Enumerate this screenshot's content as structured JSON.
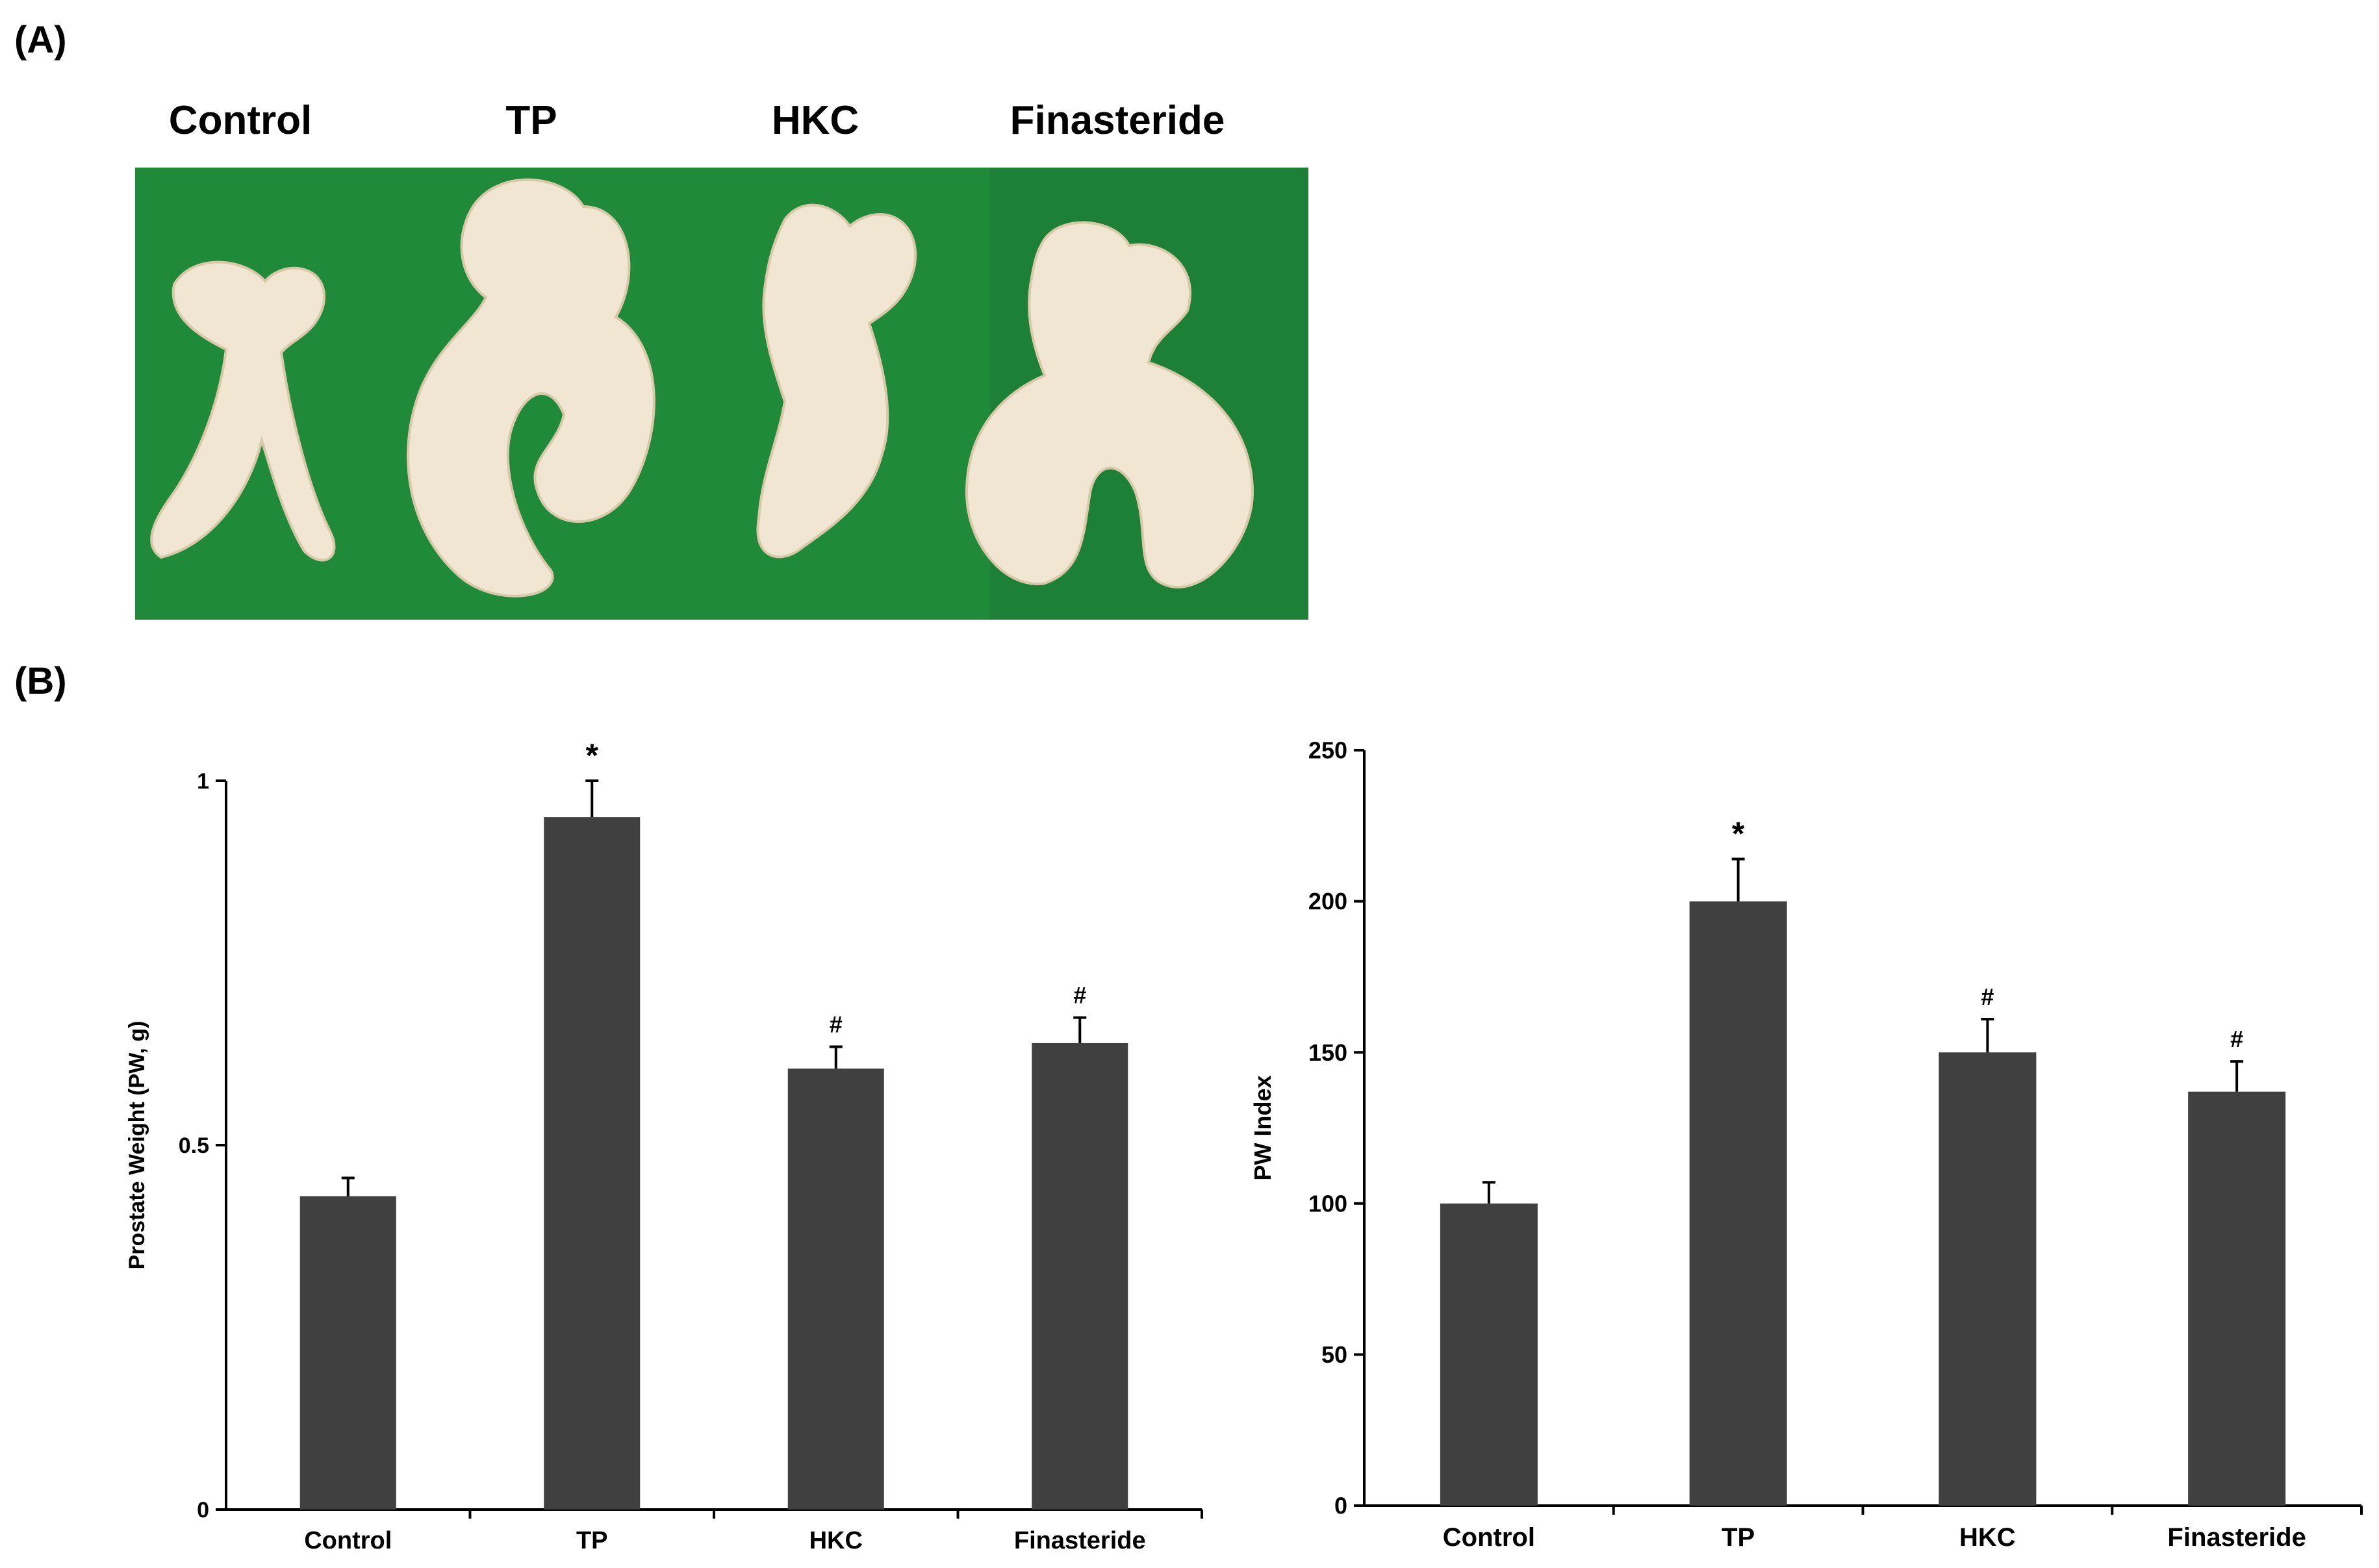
{
  "panels": {
    "a": "(A)",
    "b": "(B)"
  },
  "photo": {
    "labels": [
      "Control",
      "TP",
      "HKC",
      "Finasteride"
    ],
    "background": "#1f8a3a",
    "tissue": "#f0e6d2"
  },
  "colors": {
    "bar": "#404040",
    "axis": "#000000"
  },
  "chart_data": [
    {
      "type": "bar",
      "categories": [
        "Control",
        "TP",
        "HKC",
        "Finasteride"
      ],
      "values": [
        0.43,
        0.95,
        0.605,
        0.64
      ],
      "errors": [
        0.025,
        0.05,
        0.03,
        0.035
      ],
      "annotations": [
        "",
        "*",
        "#",
        "#"
      ],
      "title": "",
      "xlabel": "",
      "ylabel": "Prostate Weight (PW, g)",
      "ylim": [
        0,
        1
      ],
      "yticks": [
        0,
        0.5,
        1
      ],
      "ytick_labels": [
        "0",
        "0.5",
        "1"
      ],
      "grid": false
    },
    {
      "type": "bar",
      "categories": [
        "Control",
        "TP",
        "HKC",
        "Finasteride"
      ],
      "values": [
        100,
        200,
        150,
        137
      ],
      "errors": [
        7,
        14,
        11,
        10
      ],
      "annotations": [
        "",
        "*",
        "#",
        "#"
      ],
      "title": "",
      "xlabel": "",
      "ylabel": "PW Index",
      "ylim": [
        0,
        250
      ],
      "yticks": [
        0,
        50,
        100,
        150,
        200,
        250
      ],
      "ytick_labels": [
        "0",
        "50",
        "100",
        "150",
        "200",
        "250"
      ],
      "grid": false
    }
  ]
}
